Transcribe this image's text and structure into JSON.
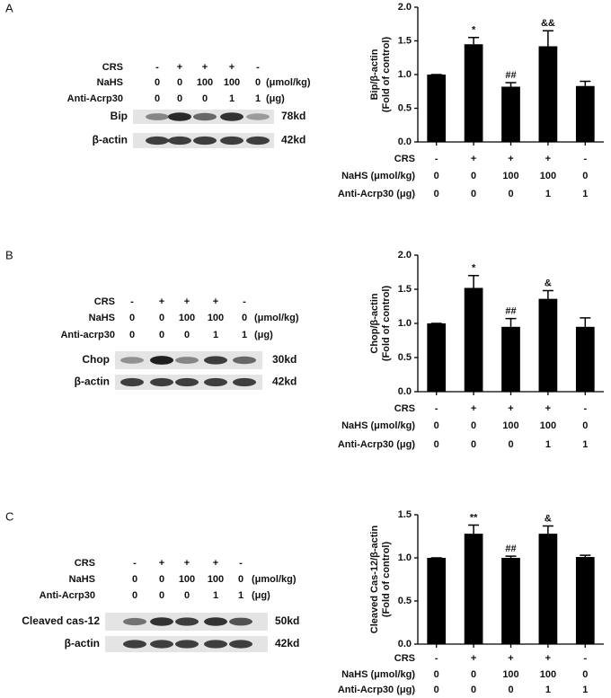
{
  "chart_data": [
    {
      "type": "bar",
      "ylabel": "Bip/β-actin",
      "ylabel_sub": "(Fold of control)",
      "categories": [
        null,
        null,
        null,
        null,
        null
      ],
      "values": [
        1.0,
        1.45,
        0.82,
        1.42,
        0.83
      ],
      "errors": [
        0,
        0.1,
        0.06,
        0.23,
        0.07
      ],
      "annotations": [
        null,
        "*",
        "##",
        "&&",
        null
      ],
      "color": "#000000",
      "ylim": [
        0,
        2
      ],
      "yticks": [
        {
          "value": 0,
          "label": "0.0"
        },
        {
          "value": 0.5,
          "label": "0.5"
        },
        {
          "value": 1,
          "label": "1.0"
        },
        {
          "value": 1.5,
          "label": "1.5"
        },
        {
          "value": 2,
          "label": "2.0"
        }
      ],
      "condition_rows": [
        {
          "label": "CRS",
          "values": [
            "-",
            "+",
            "+",
            "+",
            "-"
          ]
        },
        {
          "label": "NaHS (μmol/kg)",
          "values": [
            "0",
            "0",
            "100",
            "100",
            "0"
          ]
        },
        {
          "label": "Anti-Acrp30 (μg)",
          "values": [
            "0",
            "0",
            "0",
            "1",
            "1"
          ]
        }
      ]
    },
    {
      "type": "bar",
      "ylabel": "Chop/β-actin",
      "ylabel_sub": "(Fold of control)",
      "categories": [
        null,
        null,
        null,
        null,
        null
      ],
      "values": [
        1.0,
        1.52,
        0.95,
        1.36,
        0.95
      ],
      "errors": [
        0,
        0.18,
        0.12,
        0.12,
        0.13
      ],
      "annotations": [
        null,
        "*",
        "##",
        "&",
        null
      ],
      "color": "#000000",
      "ylim": [
        0,
        2
      ],
      "yticks": [
        {
          "value": 0,
          "label": "0.0"
        },
        {
          "value": 0.5,
          "label": "0.5"
        },
        {
          "value": 1,
          "label": "1.0"
        },
        {
          "value": 1.5,
          "label": "1.5"
        },
        {
          "value": 2,
          "label": "2.0"
        }
      ],
      "condition_rows": [
        {
          "label": "CRS",
          "values": [
            "-",
            "+",
            "+",
            "+",
            "-"
          ]
        },
        {
          "label": "NaHS (μmol/kg)",
          "values": [
            "0",
            "0",
            "100",
            "100",
            "0"
          ]
        },
        {
          "label": "Anti-Acrp30 (μg)",
          "values": [
            "0",
            "0",
            "0",
            "1",
            "1"
          ]
        }
      ]
    },
    {
      "type": "bar",
      "ylabel": "Cleaved Cas-12/β-actin",
      "ylabel_sub": "(Fold of control)",
      "categories": [
        null,
        null,
        null,
        null,
        null
      ],
      "values": [
        1.0,
        1.28,
        1.0,
        1.28,
        1.01
      ],
      "errors": [
        0,
        0.1,
        0.02,
        0.09,
        0.02
      ],
      "annotations": [
        null,
        "**",
        "##",
        "&",
        null
      ],
      "color": "#000000",
      "ylim": [
        0,
        1.5
      ],
      "yticks": [
        {
          "value": 0,
          "label": "0.0"
        },
        {
          "value": 0.5,
          "label": "0.5"
        },
        {
          "value": 1,
          "label": "1.0"
        },
        {
          "value": 1.5,
          "label": "1.5"
        }
      ],
      "condition_rows": [
        {
          "label": "CRS",
          "values": [
            "-",
            "+",
            "+",
            "+",
            "-"
          ]
        },
        {
          "label": "NaHS (μmol/kg)",
          "values": [
            "0",
            "0",
            "100",
            "100",
            "0"
          ]
        },
        {
          "label": "Anti-Acrp30 (μg)",
          "values": [
            "0",
            "0",
            "0",
            "1",
            "1"
          ]
        }
      ]
    }
  ],
  "blots": [
    {
      "panel": "A",
      "conditions": [
        {
          "label": "CRS",
          "values": [
            "-",
            "+",
            "+",
            "+",
            "-"
          ]
        },
        {
          "label": "NaHS",
          "values": [
            "0",
            "0",
            "100",
            "100",
            "0"
          ],
          "unit": "(μmol/kg)"
        },
        {
          "label": "Anti-Acrp30",
          "values": [
            "0",
            "0",
            "0",
            "1",
            "1"
          ],
          "unit": "(μg)"
        }
      ],
      "bands": [
        {
          "name": "Bip",
          "size": "78kd"
        },
        {
          "name": "β-actin",
          "size": "42kd"
        }
      ]
    },
    {
      "panel": "B",
      "conditions": [
        {
          "label": "CRS",
          "values": [
            "-",
            "+",
            "+",
            "+",
            "-"
          ]
        },
        {
          "label": "NaHS",
          "values": [
            "0",
            "0",
            "100",
            "100",
            "0"
          ],
          "unit": "(μmol/kg)"
        },
        {
          "label": "Anti-acrp30",
          "values": [
            "0",
            "0",
            "0",
            "1",
            "1"
          ],
          "unit": "(μg)"
        }
      ],
      "bands": [
        {
          "name": "Chop",
          "size": "30kd"
        },
        {
          "name": "β-actin",
          "size": "42kd"
        }
      ]
    },
    {
      "panel": "C",
      "conditions": [
        {
          "label": "CRS",
          "values": [
            "-",
            "+",
            "+",
            "+",
            "-"
          ]
        },
        {
          "label": "NaHS",
          "values": [
            "0",
            "0",
            "100",
            "100",
            "0"
          ],
          "unit": "(μmol/kg)"
        },
        {
          "label": "Anti-Acrp30",
          "values": [
            "0",
            "0",
            "0",
            "1",
            "1"
          ],
          "unit": "(μg)"
        }
      ],
      "bands": [
        {
          "name": "Cleaved cas-12",
          "size": "50kd"
        },
        {
          "name": "β-actin",
          "size": "42kd"
        }
      ]
    }
  ]
}
